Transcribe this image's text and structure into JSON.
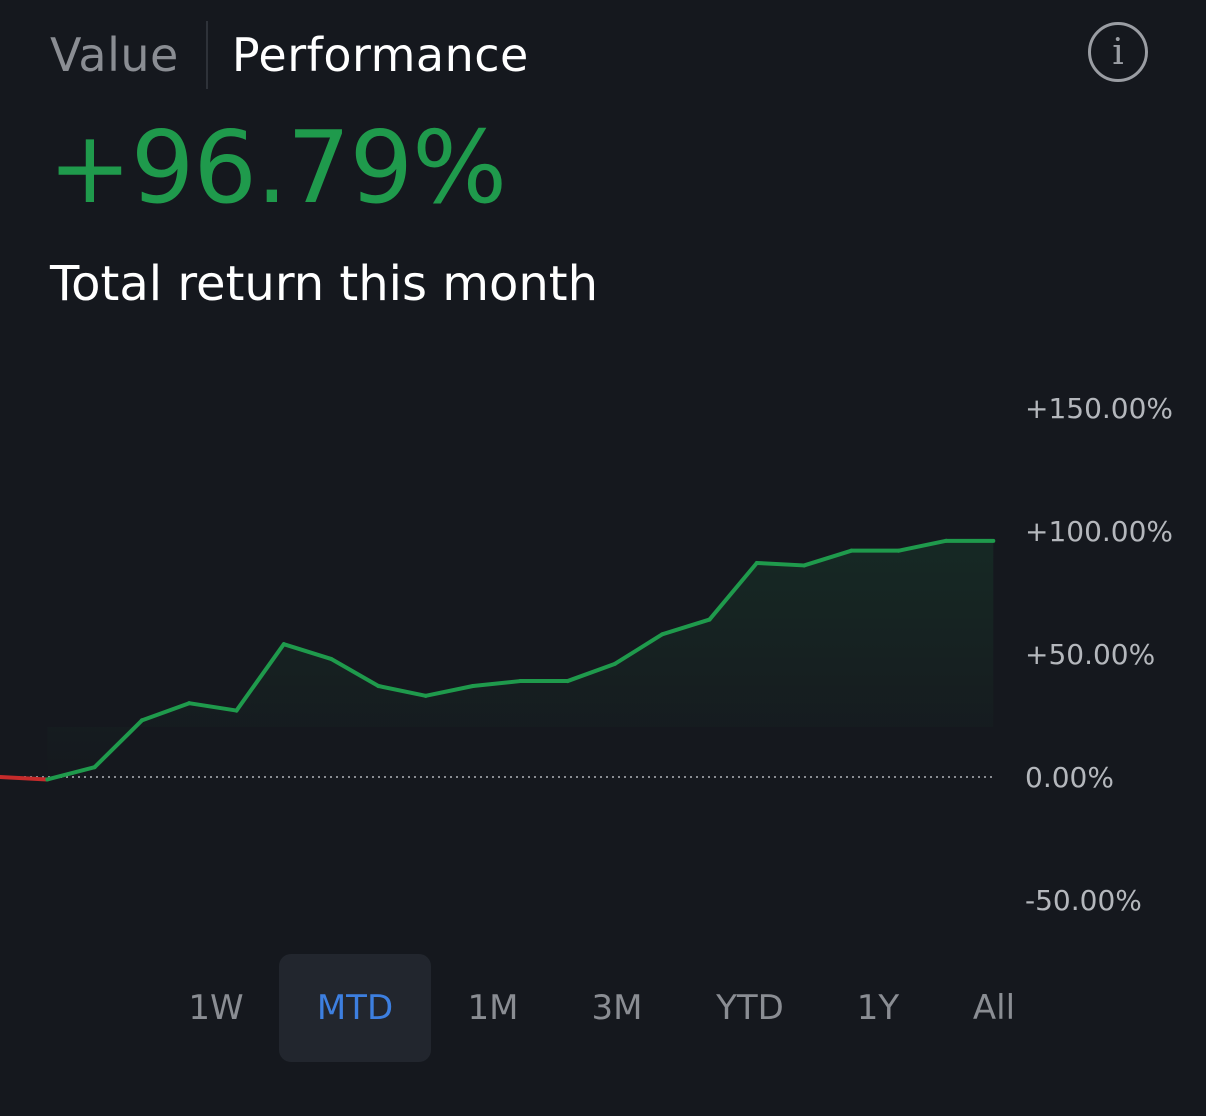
{
  "tabs": [
    {
      "label": "Value",
      "active": false
    },
    {
      "label": "Performance",
      "active": true
    }
  ],
  "info_icon": {
    "name": "info-icon",
    "glyph": "i"
  },
  "summary": {
    "value": "+96.79%",
    "label": "Total return this month",
    "color": "#1f9a4c"
  },
  "chart_data": {
    "type": "area",
    "y_ticks": [
      "+150.00%",
      "+100.00%",
      "+50.00%",
      "0.00%",
      "-50.00%"
    ],
    "ylim": [
      -50,
      150
    ],
    "baseline": 0,
    "colors": {
      "positive": "#1f9a4c",
      "negative": "#c62b2b"
    },
    "values": [
      0,
      -1,
      4,
      23,
      30,
      27,
      54,
      48,
      37,
      33,
      37,
      39,
      39,
      46,
      58,
      64,
      87,
      86,
      92,
      92,
      96,
      96
    ]
  },
  "ranges": [
    {
      "label": "1W",
      "selected": false
    },
    {
      "label": "MTD",
      "selected": true
    },
    {
      "label": "1M",
      "selected": false
    },
    {
      "label": "3M",
      "selected": false
    },
    {
      "label": "YTD",
      "selected": false
    },
    {
      "label": "1Y",
      "selected": false
    },
    {
      "label": "All",
      "selected": false
    }
  ],
  "colors": {
    "background": "#15181e",
    "selected_range_text": "#3d7fe0",
    "inactive_text": "#8a8d93"
  }
}
